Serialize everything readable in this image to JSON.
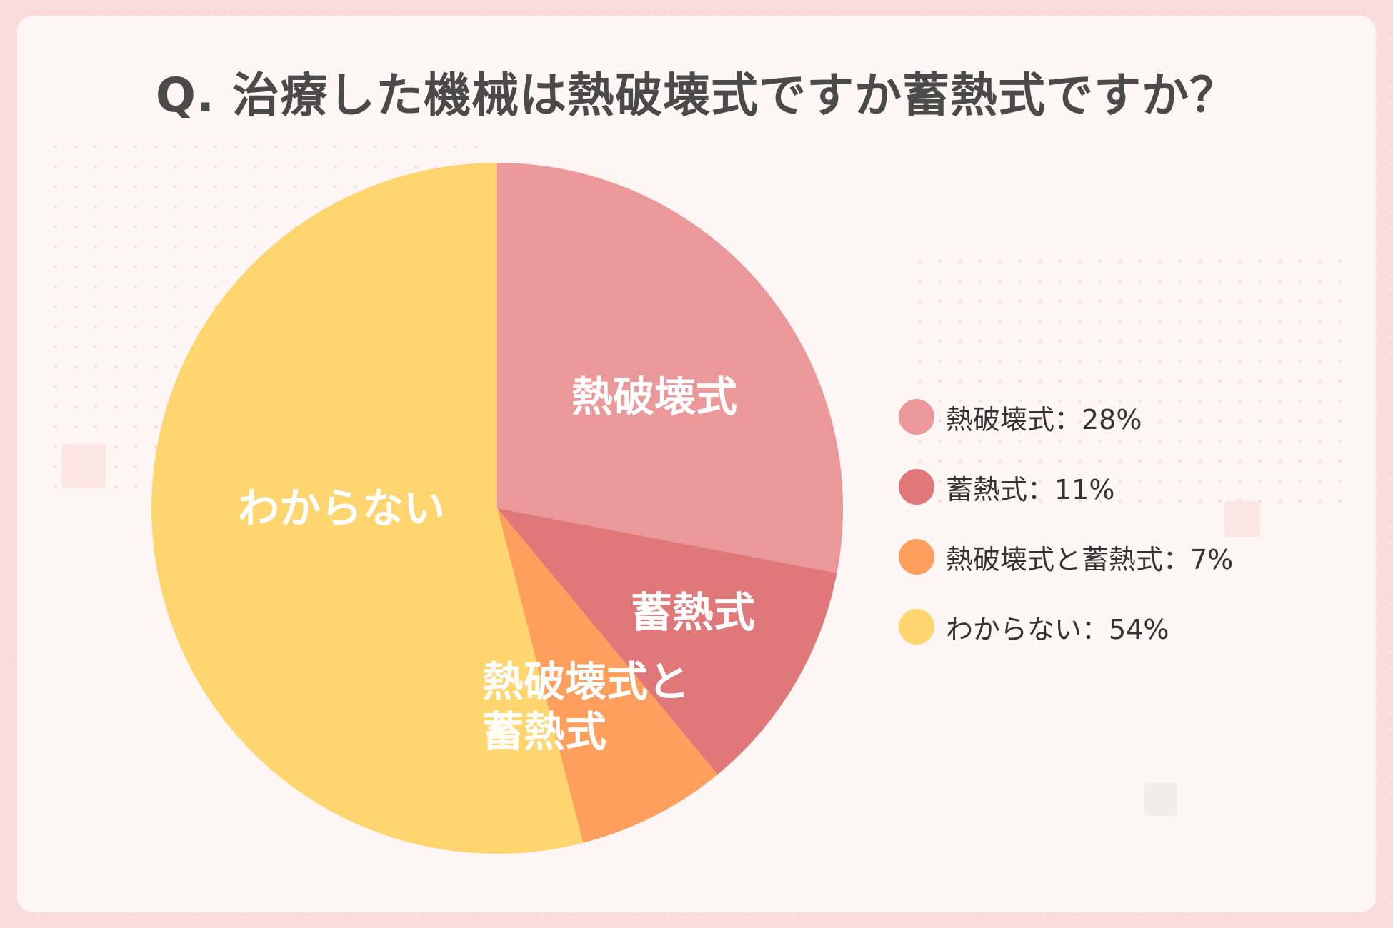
{
  "page": {
    "title": "Q. 治療した機械は熱破壊式ですか蓄熱式ですか？"
  },
  "chart_data": {
    "type": "pie",
    "categories": [
      "熱破壊式",
      "蓄熱式",
      "熱破壊式と蓄熱式",
      "わからない"
    ],
    "values": [
      28,
      11,
      7,
      54
    ],
    "unit": "%",
    "colors": [
      "#ea9899",
      "#e07779",
      "#fe9f5e",
      "#fed56e"
    ],
    "slice_labels": [
      "熱破壊式",
      "蓄熱式",
      "熱破壊式と\n蓄熱式",
      "わからない"
    ],
    "legend_position": "right",
    "legend": [
      {
        "label": "熱破壊式：28%",
        "color": "#ea9899"
      },
      {
        "label": "蓄熱式：11%",
        "color": "#e07779"
      },
      {
        "label": "熱破壊式と蓄熱式：7%",
        "color": "#fe9f5e"
      },
      {
        "label": "わからない：54%",
        "color": "#fed56e"
      }
    ]
  }
}
